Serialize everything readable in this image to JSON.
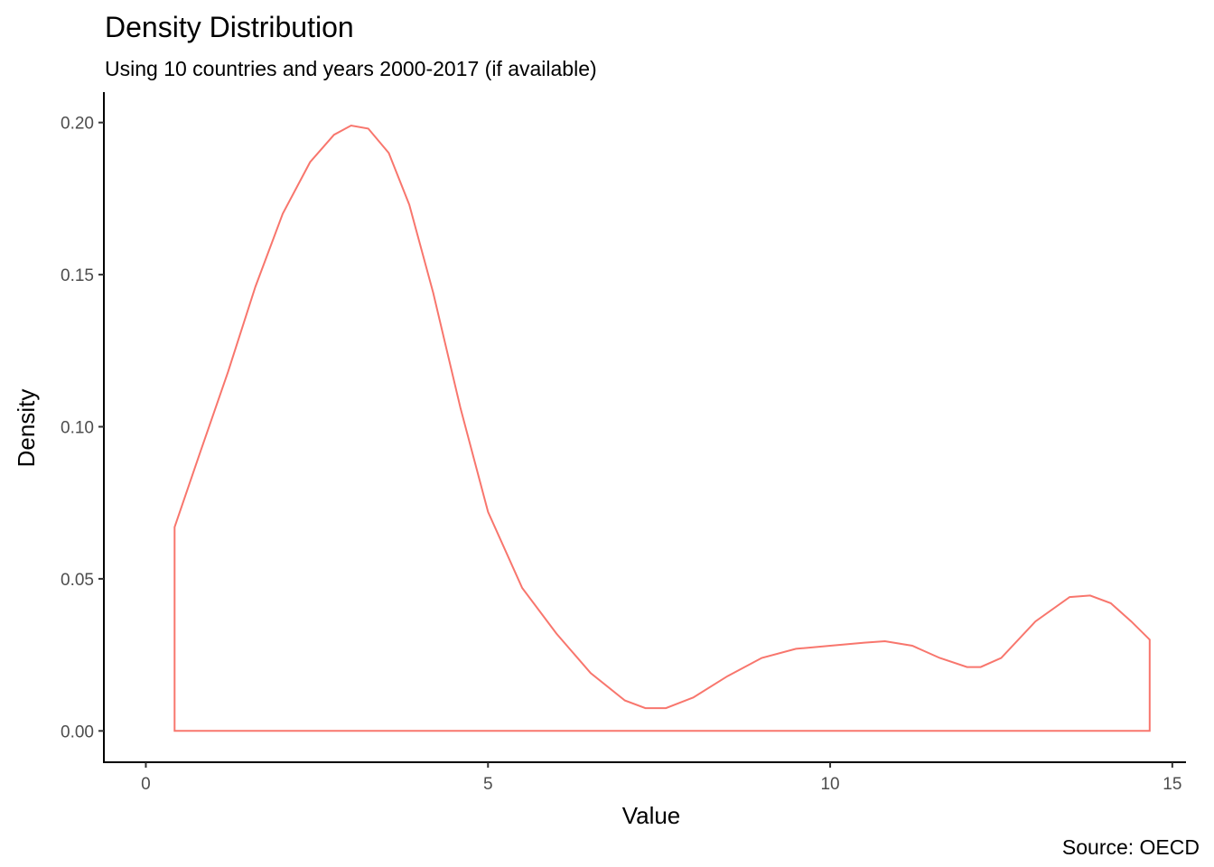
{
  "chart_data": {
    "type": "area",
    "title": "Density Distribution",
    "subtitle": "Using 10 countries and years 2000-2017 (if available)",
    "xlabel": "Value",
    "ylabel": "Density",
    "caption": "Source: OECD",
    "xlim": [
      -0.6,
      15.2
    ],
    "ylim": [
      -0.01,
      0.21
    ],
    "x_ticks": [
      0,
      5,
      10,
      15
    ],
    "x_tick_labels": [
      "0",
      "5",
      "10",
      "15"
    ],
    "y_ticks": [
      0,
      0.05,
      0.1,
      0.15,
      0.2
    ],
    "y_tick_labels": [
      "0.00",
      "0.05",
      "0.10",
      "0.15",
      "0.20"
    ],
    "grid": false,
    "legend": "none",
    "line_color": "#F8766D",
    "fill_color": "none",
    "series": [
      {
        "x": [
          0.42,
          0.8,
          1.2,
          1.6,
          2.0,
          2.4,
          2.75,
          3.0,
          3.25,
          3.55,
          3.85,
          4.2,
          4.6,
          5.0,
          5.5,
          6.0,
          6.5,
          7.0,
          7.3,
          7.6,
          8.0,
          8.5,
          9.0,
          9.5,
          10.0,
          10.5,
          10.8,
          11.2,
          11.6,
          12.0,
          12.2,
          12.5,
          13.0,
          13.5,
          13.8,
          14.1,
          14.4,
          14.67
        ],
        "y": [
          0.067,
          0.092,
          0.118,
          0.146,
          0.17,
          0.187,
          0.196,
          0.199,
          0.198,
          0.19,
          0.173,
          0.144,
          0.106,
          0.072,
          0.047,
          0.032,
          0.019,
          0.01,
          0.0075,
          0.0075,
          0.011,
          0.018,
          0.024,
          0.027,
          0.028,
          0.029,
          0.0295,
          0.028,
          0.024,
          0.021,
          0.021,
          0.024,
          0.036,
          0.044,
          0.0445,
          0.042,
          0.036,
          0.03
        ]
      }
    ]
  }
}
